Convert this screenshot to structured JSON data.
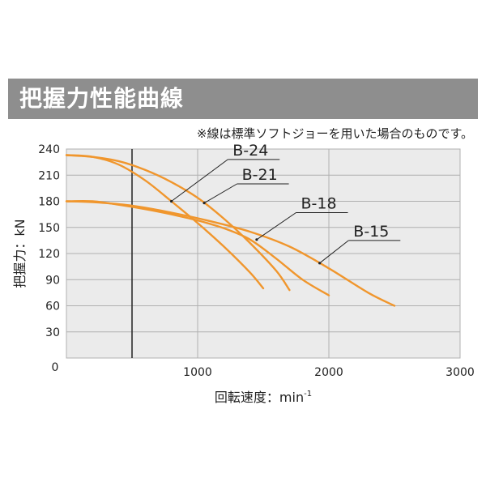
{
  "header": {
    "title": "把握力性能曲線",
    "note": "※線は標準ソフトジョーを用いた場合のものです。"
  },
  "colors": {
    "title_bar": "#8e8e8e",
    "plot_bg": "#ebebeb",
    "grid": "#b0b0b0",
    "curve": "#f0962d",
    "limit_line": "#222222"
  },
  "chart_data": {
    "type": "line",
    "title": "",
    "xlabel": "回転速度：min",
    "xlabel_superscript": "-1",
    "ylabel": "把握力：kN",
    "xlim": [
      0,
      3000
    ],
    "ylim": [
      0,
      240
    ],
    "x_ticks": [
      1000,
      2000,
      3000
    ],
    "x_tick_labels": [
      "1000",
      "2000",
      "3000"
    ],
    "y_ticks": [
      0,
      30,
      60,
      90,
      120,
      150,
      180,
      210,
      240
    ],
    "y_tick_labels": [
      "0",
      "30",
      "60",
      "90",
      "120",
      "150",
      "180",
      "210",
      "240"
    ],
    "grid": true,
    "vertical_marker_x": 500,
    "series": [
      {
        "name": "B-24",
        "x": [
          0,
          200,
          400,
          600,
          800,
          1000,
          1200,
          1400,
          1500
        ],
        "y": [
          233,
          231,
          222,
          204,
          180,
          155,
          128,
          98,
          80
        ],
        "label_x": 1230,
        "label_y": 228,
        "pointer_x": 800,
        "pointer_y": 180
      },
      {
        "name": "B-21",
        "x": [
          0,
          200,
          400,
          600,
          800,
          1000,
          1200,
          1400,
          1600,
          1700
        ],
        "y": [
          233,
          231,
          226,
          216,
          202,
          184,
          160,
          132,
          100,
          78
        ],
        "label_x": 1300,
        "label_y": 200,
        "pointer_x": 1050,
        "pointer_y": 178
      },
      {
        "name": "B-18",
        "x": [
          0,
          200,
          400,
          600,
          800,
          1000,
          1200,
          1400,
          1600,
          1800,
          2000
        ],
        "y": [
          180,
          180,
          176,
          171,
          165,
          158,
          149,
          136,
          114,
          90,
          72
        ],
        "label_x": 1750,
        "label_y": 167,
        "pointer_x": 1450,
        "pointer_y": 136
      },
      {
        "name": "B-15",
        "x": [
          0,
          200,
          500,
          800,
          1100,
          1400,
          1700,
          2000,
          2300,
          2500
        ],
        "y": [
          180,
          179,
          175,
          167,
          157,
          145,
          128,
          103,
          75,
          60
        ],
        "label_x": 2150,
        "label_y": 135,
        "pointer_x": 1930,
        "pointer_y": 109
      }
    ]
  }
}
